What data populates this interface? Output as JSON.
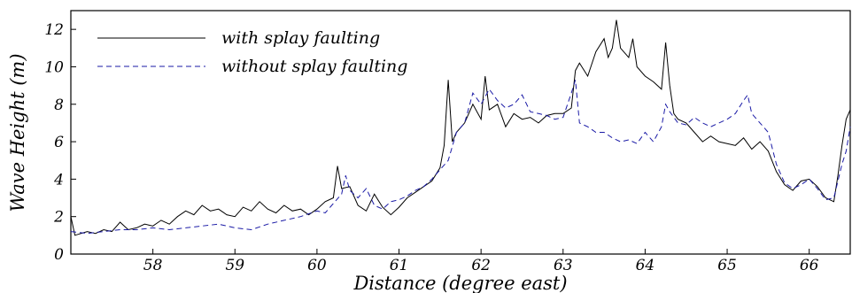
{
  "chart_data": {
    "type": "line",
    "title": "",
    "xlabel": "Distance (degree east)",
    "ylabel": "Wave Height (m)",
    "xlim": [
      57.0,
      66.5
    ],
    "ylim": [
      0,
      13
    ],
    "x_ticks": [
      "58",
      "59",
      "60",
      "61",
      "62",
      "63",
      "64",
      "65",
      "66"
    ],
    "y_ticks": [
      "0",
      "2",
      "4",
      "6",
      "8",
      "10",
      "12"
    ],
    "grid": false,
    "legend_position": "top-left",
    "series": [
      {
        "name": "with splay faulting",
        "style": "solid",
        "color": "#000000",
        "points": [
          [
            57.0,
            2.0
          ],
          [
            57.05,
            1.0
          ],
          [
            57.2,
            1.2
          ],
          [
            57.3,
            1.1
          ],
          [
            57.4,
            1.3
          ],
          [
            57.5,
            1.2
          ],
          [
            57.6,
            1.7
          ],
          [
            57.7,
            1.3
          ],
          [
            57.8,
            1.4
          ],
          [
            57.9,
            1.6
          ],
          [
            58.0,
            1.5
          ],
          [
            58.1,
            1.8
          ],
          [
            58.2,
            1.6
          ],
          [
            58.3,
            2.0
          ],
          [
            58.4,
            2.3
          ],
          [
            58.5,
            2.1
          ],
          [
            58.6,
            2.6
          ],
          [
            58.7,
            2.3
          ],
          [
            58.8,
            2.4
          ],
          [
            58.9,
            2.1
          ],
          [
            59.0,
            2.0
          ],
          [
            59.1,
            2.5
          ],
          [
            59.2,
            2.3
          ],
          [
            59.3,
            2.8
          ],
          [
            59.4,
            2.4
          ],
          [
            59.5,
            2.2
          ],
          [
            59.6,
            2.6
          ],
          [
            59.7,
            2.3
          ],
          [
            59.8,
            2.4
          ],
          [
            59.9,
            2.1
          ],
          [
            60.0,
            2.4
          ],
          [
            60.1,
            2.8
          ],
          [
            60.2,
            3.0
          ],
          [
            60.25,
            4.7
          ],
          [
            60.3,
            3.5
          ],
          [
            60.4,
            3.6
          ],
          [
            60.5,
            2.6
          ],
          [
            60.6,
            2.3
          ],
          [
            60.7,
            3.2
          ],
          [
            60.8,
            2.5
          ],
          [
            60.9,
            2.1
          ],
          [
            61.0,
            2.5
          ],
          [
            61.1,
            3.0
          ],
          [
            61.2,
            3.3
          ],
          [
            61.3,
            3.6
          ],
          [
            61.4,
            3.9
          ],
          [
            61.5,
            4.6
          ],
          [
            61.55,
            5.8
          ],
          [
            61.6,
            9.3
          ],
          [
            61.65,
            6.0
          ],
          [
            61.7,
            6.5
          ],
          [
            61.8,
            7.0
          ],
          [
            61.9,
            8.0
          ],
          [
            62.0,
            7.2
          ],
          [
            62.05,
            9.5
          ],
          [
            62.1,
            7.7
          ],
          [
            62.2,
            8.0
          ],
          [
            62.3,
            6.8
          ],
          [
            62.4,
            7.5
          ],
          [
            62.5,
            7.2
          ],
          [
            62.6,
            7.3
          ],
          [
            62.7,
            7.0
          ],
          [
            62.8,
            7.4
          ],
          [
            62.9,
            7.5
          ],
          [
            63.0,
            7.5
          ],
          [
            63.1,
            7.8
          ],
          [
            63.15,
            9.8
          ],
          [
            63.2,
            10.2
          ],
          [
            63.3,
            9.5
          ],
          [
            63.4,
            10.8
          ],
          [
            63.5,
            11.5
          ],
          [
            63.55,
            10.5
          ],
          [
            63.6,
            11.0
          ],
          [
            63.65,
            12.5
          ],
          [
            63.7,
            11.0
          ],
          [
            63.8,
            10.5
          ],
          [
            63.85,
            11.5
          ],
          [
            63.9,
            10.0
          ],
          [
            64.0,
            9.5
          ],
          [
            64.1,
            9.2
          ],
          [
            64.2,
            8.8
          ],
          [
            64.25,
            11.3
          ],
          [
            64.3,
            9.0
          ],
          [
            64.35,
            7.5
          ],
          [
            64.4,
            7.2
          ],
          [
            64.5,
            7.0
          ],
          [
            64.6,
            6.5
          ],
          [
            64.7,
            6.0
          ],
          [
            64.8,
            6.3
          ],
          [
            64.9,
            6.0
          ],
          [
            65.0,
            5.9
          ],
          [
            65.1,
            5.8
          ],
          [
            65.2,
            6.2
          ],
          [
            65.3,
            5.6
          ],
          [
            65.4,
            6.0
          ],
          [
            65.5,
            5.5
          ],
          [
            65.6,
            4.4
          ],
          [
            65.7,
            3.7
          ],
          [
            65.8,
            3.4
          ],
          [
            65.9,
            3.9
          ],
          [
            66.0,
            4.0
          ],
          [
            66.1,
            3.6
          ],
          [
            66.2,
            3.0
          ],
          [
            66.3,
            2.8
          ],
          [
            66.35,
            4.2
          ],
          [
            66.4,
            5.8
          ],
          [
            66.45,
            7.2
          ],
          [
            66.5,
            7.7
          ]
        ]
      },
      {
        "name": "without splay faulting",
        "style": "dashed",
        "color": "#1a1aa6",
        "points": [
          [
            57.0,
            1.2
          ],
          [
            57.2,
            1.1
          ],
          [
            57.4,
            1.2
          ],
          [
            57.6,
            1.3
          ],
          [
            57.8,
            1.3
          ],
          [
            58.0,
            1.4
          ],
          [
            58.2,
            1.3
          ],
          [
            58.4,
            1.4
          ],
          [
            58.6,
            1.5
          ],
          [
            58.8,
            1.6
          ],
          [
            59.0,
            1.4
          ],
          [
            59.2,
            1.3
          ],
          [
            59.4,
            1.6
          ],
          [
            59.6,
            1.8
          ],
          [
            59.8,
            2.0
          ],
          [
            60.0,
            2.3
          ],
          [
            60.1,
            2.2
          ],
          [
            60.2,
            2.7
          ],
          [
            60.3,
            3.2
          ],
          [
            60.35,
            4.2
          ],
          [
            60.4,
            3.4
          ],
          [
            60.5,
            3.0
          ],
          [
            60.6,
            3.5
          ],
          [
            60.7,
            2.6
          ],
          [
            60.8,
            2.4
          ],
          [
            60.9,
            2.8
          ],
          [
            61.0,
            2.9
          ],
          [
            61.1,
            3.1
          ],
          [
            61.2,
            3.4
          ],
          [
            61.3,
            3.6
          ],
          [
            61.4,
            4.0
          ],
          [
            61.5,
            4.5
          ],
          [
            61.6,
            5.0
          ],
          [
            61.7,
            6.5
          ],
          [
            61.8,
            7.0
          ],
          [
            61.9,
            8.6
          ],
          [
            62.0,
            8.0
          ],
          [
            62.1,
            8.8
          ],
          [
            62.2,
            8.2
          ],
          [
            62.3,
            7.8
          ],
          [
            62.4,
            8.0
          ],
          [
            62.5,
            8.5
          ],
          [
            62.6,
            7.6
          ],
          [
            62.7,
            7.5
          ],
          [
            62.8,
            7.4
          ],
          [
            62.9,
            7.2
          ],
          [
            63.0,
            7.3
          ],
          [
            63.1,
            8.6
          ],
          [
            63.15,
            9.3
          ],
          [
            63.2,
            7.0
          ],
          [
            63.3,
            6.8
          ],
          [
            63.4,
            6.5
          ],
          [
            63.5,
            6.5
          ],
          [
            63.6,
            6.2
          ],
          [
            63.7,
            6.0
          ],
          [
            63.8,
            6.1
          ],
          [
            63.9,
            5.9
          ],
          [
            64.0,
            6.5
          ],
          [
            64.1,
            6.0
          ],
          [
            64.2,
            6.8
          ],
          [
            64.25,
            8.0
          ],
          [
            64.3,
            7.6
          ],
          [
            64.4,
            7.0
          ],
          [
            64.5,
            6.9
          ],
          [
            64.6,
            7.3
          ],
          [
            64.7,
            7.0
          ],
          [
            64.8,
            6.8
          ],
          [
            64.9,
            7.0
          ],
          [
            65.0,
            7.2
          ],
          [
            65.1,
            7.5
          ],
          [
            65.2,
            8.2
          ],
          [
            65.25,
            8.5
          ],
          [
            65.3,
            7.5
          ],
          [
            65.4,
            7.0
          ],
          [
            65.5,
            6.5
          ],
          [
            65.6,
            4.8
          ],
          [
            65.7,
            3.8
          ],
          [
            65.8,
            3.5
          ],
          [
            65.9,
            3.7
          ],
          [
            66.0,
            4.0
          ],
          [
            66.1,
            3.5
          ],
          [
            66.2,
            2.9
          ],
          [
            66.3,
            3.0
          ],
          [
            66.4,
            4.8
          ],
          [
            66.45,
            5.5
          ],
          [
            66.5,
            6.8
          ]
        ]
      }
    ]
  }
}
